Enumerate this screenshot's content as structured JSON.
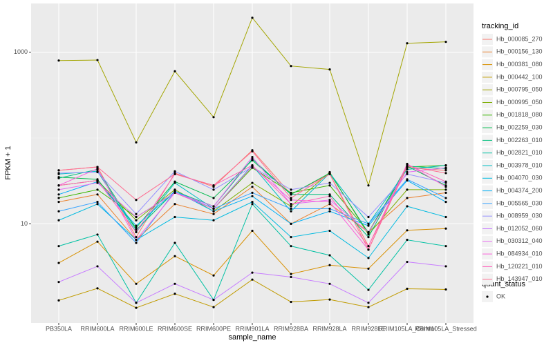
{
  "chart_data": {
    "type": "line",
    "x_label": "sample_name",
    "y_label": "FPKM + 1",
    "log_scale": true,
    "grid": true,
    "categories": [
      "PB350LA",
      "RRIM600LA",
      "RRIM600LE",
      "RRIM600SE",
      "RRIM600PE",
      "RRIM901LA",
      "RRIM928BA",
      "RRIM928LA",
      "RRIM928LE",
      "RRIM105LA_Control",
      "RRIM105LA_Stressed"
    ],
    "ylim": [
      0.7,
      3700
    ],
    "yticks": [
      10,
      1000
    ],
    "legend_title": "tracking_id",
    "legend_position": "right",
    "shape_legend": {
      "title": "quant_status",
      "labels": [
        "OK"
      ]
    },
    "series": [
      {
        "name": "Hb_000085_270",
        "color": "#F8766D",
        "values": [
          42,
          46,
          7.0,
          39,
          27,
          72,
          22,
          38,
          5.5,
          45,
          42
        ]
      },
      {
        "name": "Hb_000156_130",
        "color": "#EA8331",
        "values": [
          18,
          22,
          6.5,
          17,
          13,
          27,
          10,
          17,
          8.0,
          20,
          23
        ]
      },
      {
        "name": "Hb_000381_080",
        "color": "#D89000",
        "values": [
          3.5,
          6.2,
          2.0,
          4.2,
          2.5,
          8.3,
          2.6,
          3.3,
          3.0,
          8.4,
          8.8
        ]
      },
      {
        "name": "Hb_000442_100",
        "color": "#C09B00",
        "values": [
          1.28,
          1.77,
          1.05,
          1.53,
          1.07,
          2.24,
          1.23,
          1.31,
          1.07,
          1.75,
          1.72
        ]
      },
      {
        "name": "Hb_000795_050",
        "color": "#A3A500",
        "values": [
          800,
          810,
          89,
          600,
          175,
          2520,
          690,
          630,
          28,
          1270,
          1320
        ]
      },
      {
        "name": "Hb_000995_050",
        "color": "#7CAE00",
        "values": [
          28,
          32,
          11,
          25,
          14,
          30,
          16,
          40,
          7.5,
          25,
          25
        ]
      },
      {
        "name": "Hb_001818_080",
        "color": "#39B600",
        "values": [
          20,
          25,
          12,
          23,
          15,
          45,
          23,
          28,
          8.0,
          46,
          48
        ]
      },
      {
        "name": "Hb_002259_030",
        "color": "#00BB4E",
        "values": [
          35,
          33,
          9.0,
          31,
          20,
          55,
          22,
          39,
          7.8,
          47,
          28
        ]
      },
      {
        "name": "Hb_002263_010",
        "color": "#00BF7D",
        "values": [
          34,
          43,
          8.5,
          24,
          16,
          57,
          22,
          22,
          7.0,
          47,
          44
        ]
      },
      {
        "name": "Hb_002821_010",
        "color": "#00C1A3",
        "values": [
          5.5,
          7.5,
          1.2,
          6.0,
          1.3,
          17,
          5.5,
          4.3,
          1.7,
          6.5,
          5.5
        ]
      },
      {
        "name": "Hb_003978_010",
        "color": "#00BFC4",
        "values": [
          38,
          41,
          8.0,
          30,
          15,
          48,
          14,
          39,
          10,
          43,
          48
        ]
      },
      {
        "name": "Hb_004070_030",
        "color": "#00BAE0",
        "values": [
          11,
          17,
          6.5,
          12,
          11,
          18,
          7.0,
          8.3,
          4.0,
          16,
          12
        ]
      },
      {
        "name": "Hb_004374_200",
        "color": "#00B0F6",
        "values": [
          22,
          31,
          9.5,
          24,
          14,
          21,
          10,
          14,
          9.5,
          32,
          18
        ]
      },
      {
        "name": "Hb_005565_030",
        "color": "#35A2FF",
        "values": [
          14,
          18,
          6.0,
          24,
          15,
          23,
          15,
          15,
          10,
          33,
          20
        ]
      },
      {
        "name": "Hb_008959_030",
        "color": "#9590FF",
        "values": [
          39,
          40,
          13,
          41,
          25,
          46,
          25,
          30,
          12,
          38,
          30
        ]
      },
      {
        "name": "Hb_012052_060",
        "color": "#C77CFF",
        "values": [
          2.1,
          3.2,
          1.2,
          2.0,
          1.3,
          2.7,
          2.4,
          2.0,
          1.2,
          3.6,
          3.2
        ]
      },
      {
        "name": "Hb_030312_040",
        "color": "#E76BF3",
        "values": [
          25,
          30,
          12,
          23,
          16,
          60,
          17,
          19,
          8.0,
          40,
          45
        ]
      },
      {
        "name": "Hb_084934_010",
        "color": "#FA62DB",
        "values": [
          28,
          44,
          6.5,
          23,
          15,
          47,
          19,
          18,
          5.0,
          50,
          27
        ]
      },
      {
        "name": "Hb_120221_010",
        "color": "#FF62BC",
        "values": [
          28,
          32,
          8.0,
          38,
          28,
          48,
          17,
          21,
          5.5,
          49,
          31
        ]
      },
      {
        "name": "Hb_143947_010",
        "color": "#FF6C91",
        "values": [
          42,
          46,
          19,
          38,
          28,
          70,
          20,
          38,
          5.0,
          47,
          39
        ]
      }
    ]
  }
}
